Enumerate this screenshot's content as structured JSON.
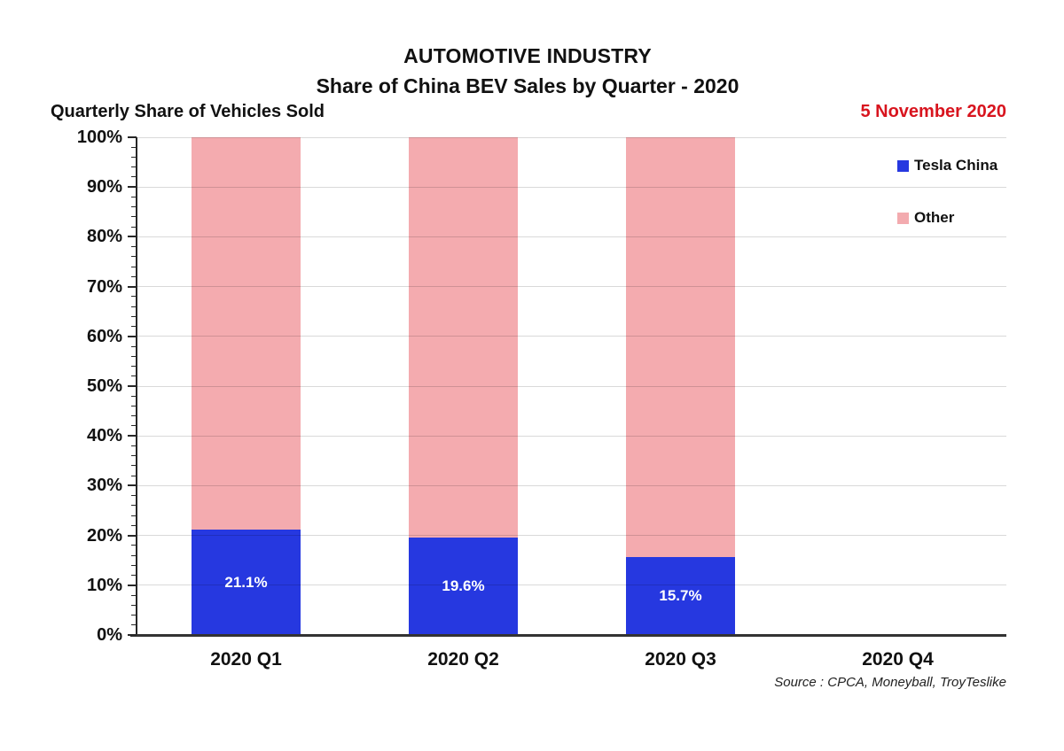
{
  "header": {
    "title_line1": "AUTOMOTIVE INDUSTRY",
    "title_line2": "Share of China BEV Sales by Quarter - 2020",
    "y_axis_header": "Quarterly Share of Vehicles Sold",
    "date_label": "5 November 2020"
  },
  "footer": {
    "source": "Source : CPCA, Moneyball, TroyTeslike"
  },
  "colors": {
    "tesla_blue": "#2638E0",
    "other_pink_fill": "rgba(241,153,158,0.82)",
    "other_pink_solid": "#F3ABAF",
    "date_red": "#D8141E",
    "gridline": "#D9D9D9",
    "axis": "#262626",
    "bar_label_text": "#FFFFFF"
  },
  "chart_data": {
    "type": "bar",
    "stacked": true,
    "title": "AUTOMOTIVE INDUSTRY — Share of China BEV Sales by Quarter - 2020",
    "xlabel": "",
    "ylabel": "Quarterly Share of Vehicles Sold",
    "ylim": [
      0,
      100
    ],
    "y_major_step": 10,
    "y_minor_step": 2,
    "grid": "horizontal-major",
    "legend_position": "inside-right",
    "categories": [
      "2020 Q1",
      "2020 Q2",
      "2020 Q3",
      "2020 Q4"
    ],
    "y_tick_labels": [
      "0%",
      "10%",
      "20%",
      "30%",
      "40%",
      "50%",
      "60%",
      "70%",
      "80%",
      "90%",
      "100%"
    ],
    "series": [
      {
        "name": "Tesla China",
        "color": "#2638E0",
        "legend_color": "#2638E0",
        "values": [
          21.1,
          19.6,
          15.7,
          null
        ],
        "data_labels": [
          "21.1%",
          "19.6%",
          "15.7%",
          ""
        ]
      },
      {
        "name": "Other",
        "color": "rgba(241,153,158,0.82)",
        "legend_color": "#F3ABAF",
        "values": [
          78.9,
          80.4,
          84.3,
          null
        ],
        "data_labels": [
          "",
          "",
          "",
          ""
        ]
      }
    ],
    "legend": [
      "Tesla China",
      "Other"
    ]
  }
}
